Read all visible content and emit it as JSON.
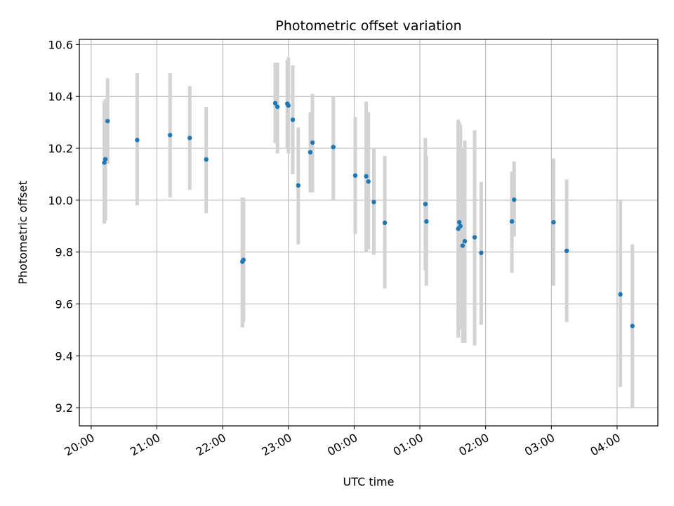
{
  "chart_data": {
    "type": "scatter",
    "title": "Photometric offset variation",
    "xlabel": "UTC time",
    "ylabel": "Photometric offset",
    "x_tick_labels": [
      "20:00",
      "21:00",
      "22:00",
      "23:00",
      "00:00",
      "01:00",
      "02:00",
      "03:00",
      "04:00"
    ],
    "x_ticks_hours": [
      0,
      1,
      2,
      3,
      4,
      5,
      6,
      7,
      8
    ],
    "x_axis_start_label": "20:00",
    "xlim_hours": [
      -0.18,
      8.62
    ],
    "y_tick_labels": [
      "9.2",
      "9.4",
      "9.6",
      "9.8",
      "10.0",
      "10.2",
      "10.4",
      "10.6"
    ],
    "y_ticks": [
      9.2,
      9.4,
      9.6,
      9.8,
      10.0,
      10.2,
      10.4,
      10.6
    ],
    "ylim": [
      9.13,
      10.62
    ],
    "grid": true,
    "marker_color": "#1f77b4",
    "errorbar_color": "#d3d3d3",
    "series": [
      {
        "points": [
          {
            "t": "20:12",
            "y": 10.145,
            "lo": 9.91,
            "hi": 10.38
          },
          {
            "t": "20:13",
            "y": 10.158,
            "lo": 9.92,
            "hi": 10.39
          },
          {
            "t": "20:15",
            "y": 10.305,
            "lo": 10.14,
            "hi": 10.47
          },
          {
            "t": "20:42",
            "y": 10.232,
            "lo": 9.98,
            "hi": 10.49
          },
          {
            "t": "21:12",
            "y": 10.251,
            "lo": 10.01,
            "hi": 10.49
          },
          {
            "t": "21:30",
            "y": 10.24,
            "lo": 10.04,
            "hi": 10.44
          },
          {
            "t": "21:45",
            "y": 10.157,
            "lo": 9.95,
            "hi": 10.36
          },
          {
            "t": "22:18",
            "y": 9.763,
            "lo": 9.51,
            "hi": 10.01
          },
          {
            "t": "22:19",
            "y": 9.77,
            "lo": 9.53,
            "hi": 10.01
          },
          {
            "t": "22:48",
            "y": 10.374,
            "lo": 10.22,
            "hi": 10.53
          },
          {
            "t": "22:50",
            "y": 10.36,
            "lo": 10.18,
            "hi": 10.53
          },
          {
            "t": "22:59",
            "y": 10.372,
            "lo": 10.2,
            "hi": 10.54
          },
          {
            "t": "23:00",
            "y": 10.365,
            "lo": 10.18,
            "hi": 10.55
          },
          {
            "t": "23:04",
            "y": 10.31,
            "lo": 10.1,
            "hi": 10.52
          },
          {
            "t": "23:09",
            "y": 10.057,
            "lo": 9.83,
            "hi": 10.28
          },
          {
            "t": "23:20",
            "y": 10.185,
            "lo": 10.03,
            "hi": 10.34
          },
          {
            "t": "23:22",
            "y": 10.222,
            "lo": 10.03,
            "hi": 10.41
          },
          {
            "t": "23:41",
            "y": 10.205,
            "lo": 10.0,
            "hi": 10.4
          },
          {
            "t": "00:01",
            "y": 10.095,
            "lo": 9.87,
            "hi": 10.32
          },
          {
            "t": "00:11",
            "y": 10.092,
            "lo": 9.8,
            "hi": 10.38
          },
          {
            "t": "00:13",
            "y": 10.072,
            "lo": 9.81,
            "hi": 10.34
          },
          {
            "t": "00:18",
            "y": 9.993,
            "lo": 9.79,
            "hi": 10.2
          },
          {
            "t": "00:28",
            "y": 9.913,
            "lo": 9.66,
            "hi": 10.17
          },
          {
            "t": "01:05",
            "y": 9.985,
            "lo": 9.73,
            "hi": 10.24
          },
          {
            "t": "01:06",
            "y": 9.918,
            "lo": 9.67,
            "hi": 10.17
          },
          {
            "t": "01:35",
            "y": 9.89,
            "lo": 9.47,
            "hi": 10.31
          },
          {
            "t": "01:36",
            "y": 9.915,
            "lo": 9.52,
            "hi": 10.3
          },
          {
            "t": "01:37",
            "y": 9.9,
            "lo": 9.5,
            "hi": 10.29
          },
          {
            "t": "01:39",
            "y": 9.825,
            "lo": 9.45,
            "hi": 10.2
          },
          {
            "t": "01:41",
            "y": 9.842,
            "lo": 9.45,
            "hi": 10.23
          },
          {
            "t": "01:50",
            "y": 9.857,
            "lo": 9.44,
            "hi": 10.27
          },
          {
            "t": "01:56",
            "y": 9.797,
            "lo": 9.52,
            "hi": 10.07
          },
          {
            "t": "02:24",
            "y": 9.918,
            "lo": 9.72,
            "hi": 10.11
          },
          {
            "t": "02:26",
            "y": 10.002,
            "lo": 9.86,
            "hi": 10.15
          },
          {
            "t": "03:02",
            "y": 9.915,
            "lo": 9.67,
            "hi": 10.16
          },
          {
            "t": "03:14",
            "y": 9.805,
            "lo": 9.53,
            "hi": 10.08
          },
          {
            "t": "04:03",
            "y": 9.637,
            "lo": 9.28,
            "hi": 10.0
          },
          {
            "t": "04:14",
            "y": 9.515,
            "lo": 9.2,
            "hi": 9.83
          }
        ]
      }
    ]
  }
}
